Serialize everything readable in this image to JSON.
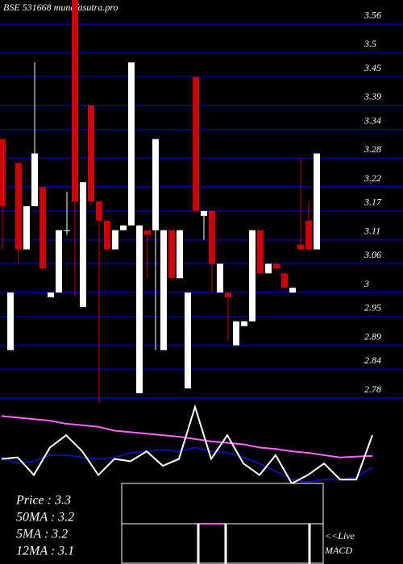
{
  "chart_data": [
    {
      "type": "candlestick",
      "title": "BSE 531668 munafasutra.pro",
      "open": [
        3.32,
        2.88,
        3.27,
        3.09,
        3.18,
        3.22,
        2.99,
        3.0,
        3.13,
        3.61,
        2.97,
        3.39,
        3.19,
        3.15,
        3.09,
        3.13,
        3.14,
        2.79,
        3.13,
        3.13,
        2.88,
        3.13,
        3.03,
        2.8,
        3.45,
        3.16,
        3.17,
        3.0,
        3.0,
        2.89,
        2.93,
        2.94,
        3.13,
        3.04,
        3.06,
        3.04,
        3.0,
        3.1,
        3.15,
        3.09
      ],
      "high": [
        3.32,
        3.0,
        3.27,
        3.18,
        3.48,
        3.22,
        3.0,
        3.13,
        3.21,
        3.61,
        3.23,
        3.39,
        3.19,
        3.15,
        3.13,
        3.14,
        3.48,
        3.14,
        3.13,
        3.32,
        3.13,
        3.13,
        3.13,
        3.0,
        3.45,
        3.17,
        3.17,
        3.06,
        3.0,
        2.94,
        2.94,
        3.13,
        3.13,
        3.06,
        3.06,
        3.04,
        3.01,
        3.28,
        3.19,
        3.29
      ],
      "low": [
        3.09,
        2.88,
        3.06,
        3.09,
        3.18,
        3.05,
        2.99,
        3.0,
        3.12,
        2.99,
        2.97,
        3.19,
        2.77,
        3.09,
        3.09,
        3.13,
        3.14,
        2.79,
        3.03,
        2.88,
        2.88,
        3.03,
        3.03,
        2.8,
        3.17,
        3.11,
        3.0,
        3.0,
        2.9,
        2.89,
        2.93,
        2.94,
        3.04,
        3.04,
        3.05,
        3.01,
        3.0,
        3.09,
        3.09,
        3.09
      ],
      "close": [
        3.18,
        3.0,
        3.09,
        3.18,
        3.29,
        3.05,
        3.0,
        3.13,
        3.13,
        3.19,
        3.23,
        3.19,
        3.15,
        3.09,
        3.13,
        3.14,
        3.48,
        3.14,
        3.12,
        3.32,
        3.13,
        3.03,
        3.13,
        3.0,
        3.17,
        3.17,
        3.06,
        3.06,
        2.99,
        2.94,
        2.94,
        3.13,
        3.04,
        3.06,
        3.05,
        3.01,
        3.01,
        3.09,
        3.09,
        3.29
      ],
      "up_color": "#ffffff",
      "down_color": "#cc0000",
      "grid_color": "#000080",
      "ylim": [
        2.77,
        3.61
      ],
      "yticks": [
        3.56,
        3.5,
        3.45,
        3.39,
        3.34,
        3.28,
        3.22,
        3.17,
        3.11,
        3.06,
        3,
        2.95,
        2.89,
        2.84,
        2.78
      ]
    },
    {
      "type": "line",
      "ylim": [
        0,
        100
      ],
      "series": [
        {
          "color": "#ff66ff",
          "values": [
            88,
            86,
            84,
            82,
            78,
            76,
            74,
            69,
            67,
            65,
            63,
            61,
            58,
            55,
            53,
            51,
            47,
            45,
            42,
            40,
            37,
            34,
            35,
            36
          ]
        },
        {
          "color": "#1010a0",
          "values": [
            34,
            26,
            29,
            37,
            37,
            34,
            32,
            34,
            40,
            42,
            44,
            42,
            47,
            42,
            40,
            34,
            26,
            16,
            5,
            2,
            5,
            5,
            8,
            21
          ]
        },
        {
          "color": "#ffffff",
          "values": [
            32,
            34,
            11,
            47,
            63,
            42,
            11,
            32,
            29,
            42,
            23,
            32,
            100,
            32,
            63,
            26,
            11,
            37,
            0,
            11,
            26,
            5,
            5,
            63
          ]
        }
      ]
    }
  ],
  "info": [
    "Price  : 3.3",
    "50MA : 3.2",
    "5MA : 3.2",
    "12MA : 3.1"
  ],
  "live": "<<Live",
  "macd_label": "MACD"
}
